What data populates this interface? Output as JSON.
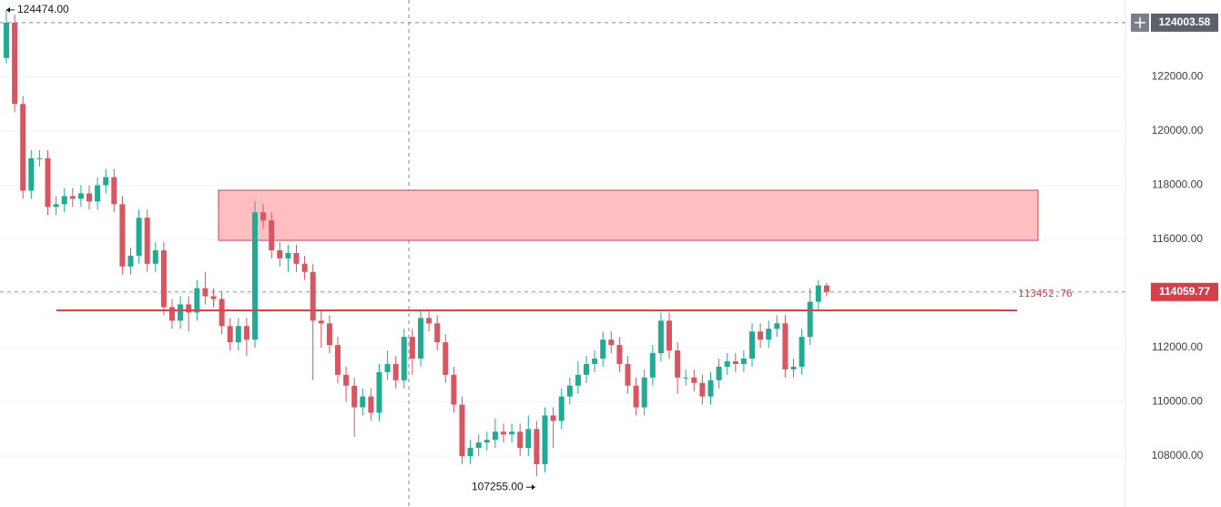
{
  "chart_data": {
    "type": "candlestick",
    "up_color": "#22ab94",
    "down_color": "#d95560",
    "open": [
      122700,
      124000,
      121000,
      117800,
      119000,
      119000,
      117200,
      117300,
      117600,
      117500,
      117700,
      117400,
      118000,
      118300,
      117300,
      115000,
      115400,
      116800,
      115100,
      115600,
      113500,
      113000,
      113600,
      113300,
      114200,
      113900,
      113800,
      112800,
      112200,
      112800,
      112300,
      117000,
      116700,
      115600,
      115300,
      115500,
      115100,
      114800,
      113000,
      112900,
      112100,
      111000,
      110600,
      109800,
      110200,
      109600,
      111100,
      111400,
      110800,
      112400,
      111600,
      113100,
      112900,
      112200,
      111000,
      109900,
      108000,
      108300,
      108500,
      108600,
      108900,
      108800,
      108900,
      108300,
      109000,
      107700,
      109500,
      109300,
      110200,
      110600,
      111000,
      111400,
      111600,
      112300,
      112100,
      111400,
      110600,
      109800,
      110900,
      111800,
      113000,
      111900,
      110900,
      110900,
      110700,
      110200,
      110800,
      111300,
      111500,
      111400,
      111600,
      112600,
      112300,
      112700,
      112900,
      111200,
      111300,
      112400,
      113700,
      114300
    ],
    "high": [
      124474,
      124300,
      121300,
      119300,
      119300,
      119300,
      117600,
      117900,
      117900,
      118000,
      118000,
      118300,
      118600,
      118600,
      117600,
      115700,
      117100,
      117100,
      115900,
      115900,
      113800,
      113900,
      113900,
      114500,
      114800,
      114200,
      114100,
      113100,
      113100,
      113100,
      117400,
      117300,
      117000,
      115900,
      115800,
      115800,
      115400,
      115100,
      113400,
      113200,
      112400,
      111300,
      110900,
      110500,
      110500,
      111400,
      111900,
      111700,
      112700,
      112700,
      113400,
      113400,
      113200,
      112500,
      111300,
      110200,
      108600,
      108800,
      108900,
      109400,
      109200,
      109200,
      109200,
      109500,
      109300,
      109800,
      109800,
      110500,
      110900,
      111500,
      111700,
      111900,
      112600,
      112600,
      112400,
      111700,
      110900,
      111200,
      112100,
      113300,
      113300,
      112200,
      111200,
      111200,
      111000,
      111100,
      111600,
      111800,
      111800,
      111900,
      112900,
      112900,
      113000,
      113200,
      113200,
      111600,
      112700,
      114200,
      114500,
      114400
    ],
    "low": [
      122500,
      120700,
      117500,
      117500,
      118700,
      116900,
      116900,
      117000,
      117200,
      117200,
      117100,
      117100,
      117700,
      117000,
      114700,
      114700,
      115100,
      114800,
      114800,
      113200,
      112700,
      112700,
      112600,
      113000,
      113600,
      113500,
      112500,
      111900,
      111900,
      111700,
      112000,
      116400,
      115300,
      115000,
      114800,
      114800,
      114500,
      110800,
      112000,
      111800,
      110700,
      110000,
      108700,
      109500,
      109300,
      109300,
      110800,
      110500,
      110500,
      111000,
      111300,
      112600,
      111900,
      110700,
      109600,
      107700,
      107700,
      108000,
      108200,
      108300,
      108500,
      108500,
      108000,
      108000,
      107255,
      107400,
      108300,
      109000,
      109900,
      110300,
      110700,
      111100,
      111300,
      111800,
      111100,
      110300,
      109500,
      109500,
      110600,
      111500,
      111600,
      110300,
      110600,
      110400,
      109900,
      109900,
      110500,
      111000,
      111100,
      111100,
      111300,
      112000,
      112000,
      112400,
      110900,
      110900,
      111000,
      112100,
      113400,
      113900
    ],
    "close": [
      124000,
      121000,
      117800,
      119000,
      119000,
      117200,
      117300,
      117600,
      117500,
      117700,
      117400,
      118000,
      118300,
      117300,
      115000,
      115400,
      116800,
      115100,
      115600,
      113500,
      113000,
      113600,
      113300,
      114200,
      113900,
      113800,
      112800,
      112200,
      112800,
      112300,
      117000,
      116700,
      115600,
      115300,
      115500,
      115100,
      114800,
      113000,
      112900,
      112100,
      111000,
      110600,
      109800,
      110200,
      109600,
      111100,
      111400,
      110800,
      112400,
      111600,
      113100,
      112900,
      112200,
      111000,
      109900,
      108000,
      108300,
      108500,
      108600,
      108900,
      108800,
      108900,
      108300,
      109000,
      107700,
      109500,
      109300,
      110200,
      110600,
      111000,
      111400,
      111600,
      112300,
      112100,
      111400,
      110600,
      109800,
      110900,
      111800,
      113000,
      111900,
      110900,
      110900,
      110700,
      110200,
      110800,
      111300,
      111500,
      111400,
      111600,
      112600,
      112300,
      112700,
      112900,
      111200,
      111300,
      112400,
      113700,
      114300,
      114060
    ],
    "ylim": [
      106120,
      124840
    ],
    "yticks": [
      {
        "value": 108000,
        "label": "108000.00"
      },
      {
        "value": 110000,
        "label": "110000.00"
      },
      {
        "value": 112000,
        "label": "112000.00"
      },
      {
        "value": 114000,
        "label": "114000.00"
      },
      {
        "value": 116000,
        "label": "116000.00"
      },
      {
        "value": 118000,
        "label": "118000.00"
      },
      {
        "value": 120000,
        "label": "120000.00"
      },
      {
        "value": 122000,
        "label": "122000.00"
      }
    ],
    "grid": true,
    "crosshair_price": {
      "value": 124003.58,
      "label": "124003.58"
    },
    "last_price": {
      "value": 114059.77,
      "label": "114059.77",
      "color": "#d43f48"
    },
    "high_label": {
      "value": 124474,
      "label": "124474.00"
    },
    "low_label": {
      "value": 107255,
      "label": "107255.00"
    },
    "zone": {
      "from": 115966,
      "to": 117815,
      "color": "#ffbfc2",
      "stroke": "#c2444c"
    },
    "level": {
      "value": 113378,
      "color": "#e0404a"
    },
    "level_label": {
      "value": 113452.76,
      "label": "113452.76"
    }
  }
}
